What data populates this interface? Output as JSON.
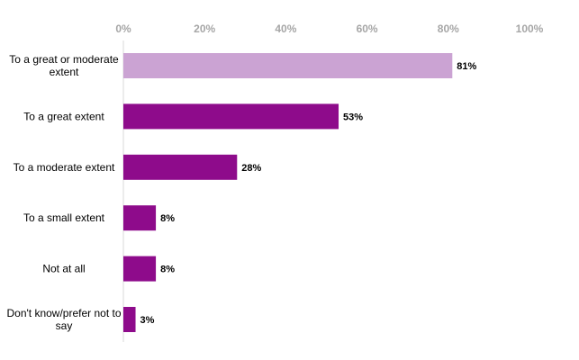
{
  "chart_data": {
    "type": "bar",
    "orientation": "horizontal",
    "categories": [
      "To a great or moderate extent",
      "To a great extent",
      "To a moderate extent",
      "To a small extent",
      "Not at all",
      "Don't know/prefer not to say"
    ],
    "category_lines": [
      [
        "To a great or moderate",
        "extent"
      ],
      [
        "To a great extent"
      ],
      [
        "To a moderate extent"
      ],
      [
        "To a small extent"
      ],
      [
        "Not at all"
      ],
      [
        "Don't know/prefer not to",
        "say"
      ]
    ],
    "values": [
      81,
      53,
      28,
      8,
      8,
      3
    ],
    "data_labels": [
      "81%",
      "53%",
      "28%",
      "8%",
      "8%",
      "3%"
    ],
    "bar_colors": [
      "#cba3d3",
      "#8e0b8b",
      "#8e0b8b",
      "#8e0b8b",
      "#8e0b8b",
      "#8e0b8b"
    ],
    "xlim": [
      0,
      100
    ],
    "xticks": [
      0,
      20,
      40,
      60,
      80,
      100
    ],
    "xtick_labels": [
      "0%",
      "20%",
      "40%",
      "60%",
      "80%",
      "100%"
    ],
    "xaxis_position": "top",
    "grid": false,
    "legend": "none",
    "title": "",
    "xlabel": "",
    "ylabel": ""
  }
}
